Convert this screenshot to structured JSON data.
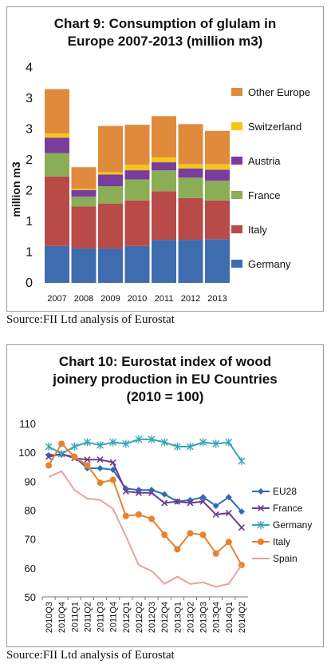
{
  "charts": [
    {
      "title_lines": [
        "Chart 9: Consumption of glulam in",
        "Europe 2007-2013 (million m3)"
      ],
      "source": "Source:FII Ltd analysis of Eurostat"
    },
    {
      "title_lines": [
        "Chart 10: Eurostat index of wood",
        "joinery production in EU Countries",
        "(2010 = 100)"
      ],
      "source": "Source:FII Ltd analysis of Eurostat"
    }
  ],
  "chart_data": [
    {
      "type": "bar",
      "stacked": true,
      "title": "Chart 9: Consumption of glulam in Europe 2007-2013 (million m3)",
      "ylabel": "million m3",
      "ylim": [
        0,
        4
      ],
      "yticks": [
        "0",
        "1",
        "1",
        "2",
        "2",
        "3",
        "3",
        "4"
      ],
      "categories": [
        "2007",
        "2008",
        "2009",
        "2010",
        "2011",
        "2012",
        "2013"
      ],
      "series": [
        {
          "name": "Germany",
          "color": "#3f6cae",
          "values": [
            0.6,
            0.56,
            0.56,
            0.6,
            0.7,
            0.7,
            0.71
          ]
        },
        {
          "name": "Italy",
          "color": "#b84b47",
          "values": [
            1.13,
            0.68,
            0.73,
            0.74,
            0.79,
            0.68,
            0.63
          ]
        },
        {
          "name": "France",
          "color": "#8aad55",
          "values": [
            0.38,
            0.16,
            0.28,
            0.34,
            0.34,
            0.33,
            0.32
          ]
        },
        {
          "name": "Austria",
          "color": "#7a3d9e",
          "values": [
            0.25,
            0.11,
            0.19,
            0.15,
            0.13,
            0.15,
            0.18
          ]
        },
        {
          "name": "Switzerland",
          "color": "#f5c518",
          "values": [
            0.07,
            0.02,
            0.04,
            0.09,
            0.08,
            0.07,
            0.09
          ]
        },
        {
          "name": "Other Europe",
          "color": "#e08a3c",
          "values": [
            0.72,
            0.35,
            0.75,
            0.65,
            0.67,
            0.65,
            0.54
          ]
        }
      ],
      "legend_order": [
        "Other Europe",
        "Switzerland",
        "Austria",
        "France",
        "Italy",
        "Germany"
      ],
      "legend_position": "right"
    },
    {
      "type": "line",
      "title": "Chart 10: Eurostat index of wood joinery production in EU Countries (2010 = 100)",
      "ylim": [
        50,
        110
      ],
      "yticks": [
        50,
        60,
        70,
        80,
        90,
        100,
        110
      ],
      "x": [
        "2010Q3",
        "2010Q4",
        "2011Q1",
        "2011Q2",
        "2011Q3",
        "2011Q4",
        "2012Q1",
        "2012Q2",
        "2012Q3",
        "2012Q4",
        "2013Q1",
        "2013Q2",
        "2013Q3",
        "2013Q4",
        "2014Q1",
        "2014Q2"
      ],
      "series": [
        {
          "name": "EU28",
          "color": "#2e6db4",
          "marker": "diamond",
          "values": [
            99,
            99.3,
            98.5,
            94.5,
            94.5,
            94,
            87.5,
            87,
            87,
            85.5,
            83,
            83.5,
            84.5,
            81.5,
            84.5,
            79.5
          ]
        },
        {
          "name": "France",
          "color": "#6b3d8f",
          "marker": "x",
          "values": [
            98.5,
            99.5,
            98,
            97.5,
            97.5,
            96.5,
            86.5,
            86,
            86,
            82.5,
            83,
            82.5,
            83,
            78.5,
            79,
            74
          ]
        },
        {
          "name": "Germany",
          "color": "#37a4b8",
          "marker": "star",
          "values": [
            102,
            99.5,
            102,
            103.5,
            102.5,
            103.5,
            103,
            104.5,
            104.5,
            103.5,
            102,
            102,
            103.5,
            103,
            103.5,
            97
          ]
        },
        {
          "name": "Italy",
          "color": "#e8812e",
          "marker": "circle",
          "values": [
            95.5,
            103,
            98.5,
            95.5,
            89.5,
            90.5,
            78,
            78.5,
            77,
            71.5,
            66.5,
            72,
            71.5,
            65,
            69,
            61
          ]
        },
        {
          "name": "Spain",
          "color": "#e8a2a0",
          "marker": "none",
          "values": [
            91.5,
            93.5,
            87,
            84,
            83.5,
            80.5,
            71,
            61,
            59,
            54.5,
            57,
            54.5,
            55,
            53.5,
            54.5,
            61
          ]
        }
      ],
      "legend_position": "right"
    }
  ]
}
